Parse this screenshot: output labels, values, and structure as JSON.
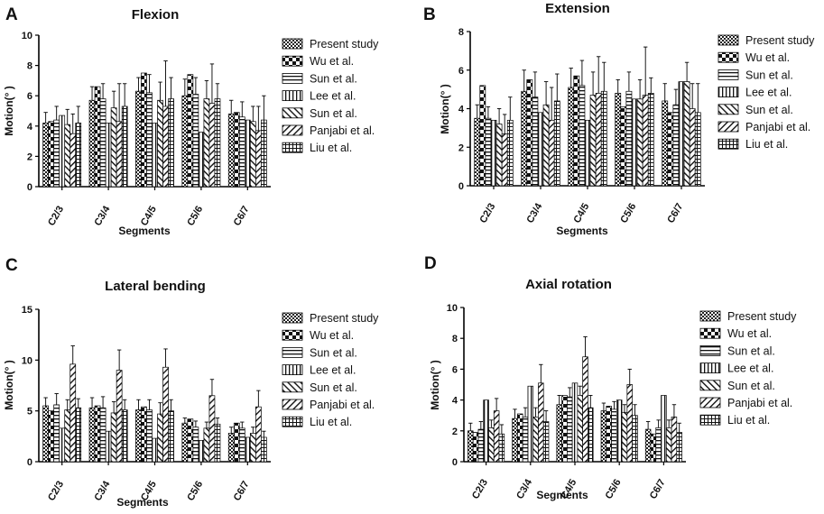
{
  "chart_data": [
    {
      "type": "bar",
      "panel_label": "A",
      "title": "Flexion",
      "xlabel": "Segments",
      "ylabel": "Motion(° )",
      "ylim": [
        0,
        10
      ],
      "yticks": [
        "0",
        "2",
        "4",
        "6",
        "8",
        "10"
      ],
      "categories": [
        "C2/3",
        "C3/4",
        "C4/5",
        "C5/6",
        "C6/7"
      ],
      "series": [
        {
          "name": "Present study",
          "pattern": "check",
          "values": [
            4.2,
            5.7,
            6.3,
            6.0,
            4.8
          ],
          "errors": [
            0.7,
            0.9,
            0.9,
            1.1,
            0.9
          ]
        },
        {
          "name": "Wu et al.",
          "pattern": "bigcheck",
          "values": [
            4.3,
            6.6,
            7.5,
            7.4,
            4.9
          ],
          "errors": [
            0,
            0,
            0,
            0,
            0
          ]
        },
        {
          "name": "Sun et al.",
          "pattern": "hlines",
          "values": [
            4.4,
            5.8,
            6.2,
            6.1,
            4.6
          ],
          "errors": [
            0.9,
            1.0,
            1.2,
            1.1,
            1.0
          ]
        },
        {
          "name": "Lee et al.",
          "pattern": "vlines",
          "values": [
            4.7,
            4.2,
            4.2,
            3.6,
            4.4
          ],
          "errors": [
            0,
            0,
            0,
            0,
            0
          ]
        },
        {
          "name": "Sun et al.",
          "pattern": "diag",
          "values": [
            4.1,
            5.2,
            5.7,
            5.8,
            4.3
          ],
          "errors": [
            1.0,
            1.1,
            1.2,
            1.2,
            1.0
          ]
        },
        {
          "name": "Panjabi et al.",
          "pattern": "antidiag",
          "values": [
            3.5,
            4.3,
            5.3,
            5.5,
            3.7
          ],
          "errors": [
            1.3,
            2.5,
            3.0,
            2.6,
            1.6
          ]
        },
        {
          "name": "Liu et al.",
          "pattern": "grid",
          "values": [
            4.2,
            5.3,
            5.8,
            5.8,
            4.4
          ],
          "errors": [
            1.1,
            1.5,
            1.4,
            1.0,
            1.6
          ]
        }
      ]
    },
    {
      "type": "bar",
      "panel_label": "B",
      "title": "Extension",
      "xlabel": "Segments",
      "ylabel": "Motion(° )",
      "ylim": [
        0,
        8
      ],
      "yticks": [
        "0",
        "2",
        "4",
        "6",
        "8"
      ],
      "categories": [
        "C2/3",
        "C3/4",
        "C4/5",
        "C5/6",
        "C6/7"
      ],
      "series": [
        {
          "name": "Present study",
          "pattern": "check",
          "values": [
            3.5,
            4.9,
            5.1,
            4.8,
            4.4
          ],
          "errors": [
            0.7,
            1.1,
            1.0,
            0.7,
            0.9
          ]
        },
        {
          "name": "Wu et al.",
          "pattern": "bigcheck",
          "values": [
            5.2,
            5.5,
            5.7,
            4.1,
            3.8
          ],
          "errors": [
            0,
            0,
            0,
            0,
            0
          ]
        },
        {
          "name": "Sun et al.",
          "pattern": "hlines",
          "values": [
            3.5,
            4.6,
            5.2,
            4.9,
            4.2
          ],
          "errors": [
            0.6,
            1.3,
            1.3,
            1.0,
            0.8
          ]
        },
        {
          "name": "Lee et al.",
          "pattern": "vlines",
          "values": [
            3.4,
            3.8,
            3.4,
            4.5,
            5.4
          ],
          "errors": [
            0,
            0,
            0,
            0,
            0
          ]
        },
        {
          "name": "Sun et al.",
          "pattern": "diag",
          "values": [
            3.2,
            4.2,
            4.7,
            4.5,
            5.4
          ],
          "errors": [
            0.8,
            1.2,
            1.2,
            1.0,
            1.0
          ]
        },
        {
          "name": "Panjabi et al.",
          "pattern": "antidiag",
          "values": [
            2.7,
            3.4,
            4.8,
            4.7,
            4.0
          ],
          "errors": [
            1.0,
            1.7,
            1.9,
            2.5,
            1.3
          ]
        },
        {
          "name": "Liu et al.",
          "pattern": "grid",
          "values": [
            3.4,
            4.4,
            4.9,
            4.8,
            3.8
          ],
          "errors": [
            1.2,
            1.4,
            1.5,
            0.8,
            1.5
          ]
        }
      ]
    },
    {
      "type": "bar",
      "panel_label": "C",
      "title": "Lateral bending",
      "xlabel": "Segments",
      "ylabel": "Motion(° )",
      "ylim": [
        0,
        15
      ],
      "yticks": [
        "0",
        "5",
        "10",
        "15"
      ],
      "categories": [
        "C2/3",
        "C3/4",
        "C4/5",
        "C5/6",
        "C6/7"
      ],
      "series": [
        {
          "name": "Present study",
          "pattern": "check",
          "values": [
            5.5,
            5.3,
            5.1,
            3.8,
            2.8
          ],
          "errors": [
            0.8,
            1.0,
            1.0,
            0.5,
            0.6
          ]
        },
        {
          "name": "Wu et al.",
          "pattern": "bigcheck",
          "values": [
            5.0,
            5.5,
            5.4,
            4.2,
            3.8
          ],
          "errors": [
            0,
            0,
            0,
            0,
            0
          ]
        },
        {
          "name": "Sun et al.",
          "pattern": "hlines",
          "values": [
            5.6,
            5.3,
            5.1,
            3.4,
            3.3
          ],
          "errors": [
            1.1,
            1.1,
            1.0,
            0.6,
            0.6
          ]
        },
        {
          "name": "Lee et al.",
          "pattern": "vlines",
          "values": [
            3.3,
            3.0,
            2.3,
            2.1,
            2.4
          ],
          "errors": [
            0,
            0,
            0,
            0,
            0
          ]
        },
        {
          "name": "Sun et al.",
          "pattern": "diag",
          "values": [
            5.1,
            4.8,
            4.7,
            3.3,
            2.8
          ],
          "errors": [
            1.0,
            1.1,
            1.1,
            0.6,
            0.6
          ]
        },
        {
          "name": "Panjabi et al.",
          "pattern": "antidiag",
          "values": [
            9.6,
            9.0,
            9.3,
            6.5,
            5.4
          ],
          "errors": [
            1.8,
            2.0,
            1.8,
            1.6,
            1.6
          ]
        },
        {
          "name": "Liu et al.",
          "pattern": "grid",
          "values": [
            5.3,
            5.1,
            5.0,
            3.7,
            2.4
          ],
          "errors": [
            0.9,
            1.0,
            1.1,
            0.6,
            0.6
          ]
        }
      ]
    },
    {
      "type": "bar",
      "panel_label": "D",
      "title": "Axial rotation",
      "xlabel": "Segments",
      "ylabel": "Motion(° )",
      "ylim": [
        0,
        10
      ],
      "yticks": [
        "0",
        "2",
        "4",
        "6",
        "8",
        "10"
      ],
      "categories": [
        "C2/3",
        "C3/4",
        "C4/5",
        "C5/6",
        "C6/7"
      ],
      "series": [
        {
          "name": "Present study",
          "pattern": "check",
          "values": [
            2.0,
            2.8,
            3.7,
            3.3,
            2.1
          ],
          "errors": [
            0.5,
            0.6,
            0.6,
            0.5,
            0.5
          ]
        },
        {
          "name": "Wu et al.",
          "pattern": "bigcheck",
          "values": [
            1.9,
            3.1,
            4.3,
            3.6,
            1.8
          ],
          "errors": [
            0,
            0,
            0,
            0,
            0
          ]
        },
        {
          "name": "Sun et al.",
          "pattern": "hlines",
          "values": [
            2.1,
            2.9,
            4.2,
            3.4,
            2.2
          ],
          "errors": [
            0.5,
            0.6,
            0.6,
            0.5,
            0.5
          ]
        },
        {
          "name": "Lee et al.",
          "pattern": "vlines",
          "values": [
            4.0,
            4.9,
            5.1,
            4.0,
            4.3
          ],
          "errors": [
            0,
            0,
            0,
            0,
            0
          ]
        },
        {
          "name": "Sun et al.",
          "pattern": "diag",
          "values": [
            2.2,
            2.9,
            4.3,
            3.2,
            2.2
          ],
          "errors": [
            0.5,
            0.6,
            0.6,
            0.5,
            0.5
          ]
        },
        {
          "name": "Panjabi et al.",
          "pattern": "antidiag",
          "values": [
            3.3,
            5.1,
            6.8,
            5.0,
            2.9
          ],
          "errors": [
            0.8,
            1.2,
            1.3,
            1.0,
            0.8
          ]
        },
        {
          "name": "Liu et al.",
          "pattern": "grid",
          "values": [
            1.8,
            2.6,
            3.5,
            3.0,
            1.9
          ],
          "errors": [
            0.6,
            0.7,
            0.8,
            0.7,
            0.6
          ]
        }
      ]
    }
  ]
}
